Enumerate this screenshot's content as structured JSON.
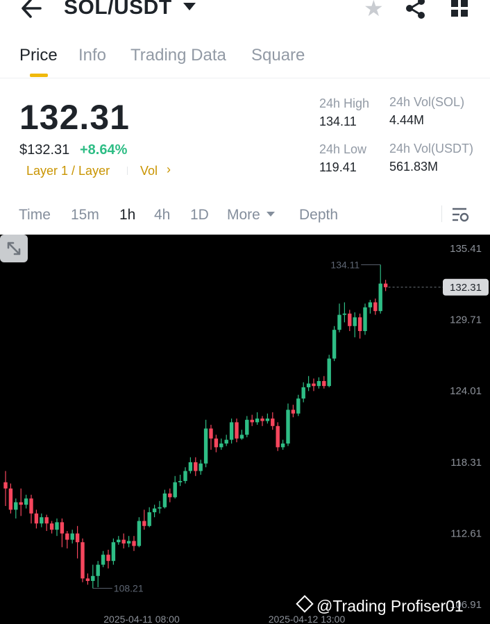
{
  "header": {
    "pair": "SOL/USDT"
  },
  "tabs": [
    {
      "label": "Price",
      "active": true
    },
    {
      "label": "Info"
    },
    {
      "label": "Trading Data"
    },
    {
      "label": "Square"
    }
  ],
  "ticker": {
    "last_price": "132.31",
    "price_usd": "$132.31",
    "change_pct": "+8.64%",
    "tag_category": "Layer 1 / Layer",
    "tag_vol": "Vol",
    "high_label": "24h High",
    "high_value": "134.11",
    "low_label": "24h Low",
    "low_value": "119.41",
    "vol_sol_label": "24h Vol(SOL)",
    "vol_sol_value": "4.44M",
    "vol_usdt_label": "24h Vol(USDT)",
    "vol_usdt_value": "561.83M"
  },
  "timeframes": {
    "items": [
      "Time",
      "15m",
      "1h",
      "4h",
      "1D",
      "More",
      "Depth"
    ],
    "active": "1h"
  },
  "colors": {
    "up": "#2ebd85",
    "down": "#f6465d",
    "accent": "#f0b90b"
  },
  "chart_data": {
    "type": "candlestick",
    "y_ticks": [
      "135.41",
      "129.71",
      "124.01",
      "118.31",
      "112.61",
      "106.91"
    ],
    "ylim": [
      106.91,
      135.41
    ],
    "x_ticks": [
      "2025-04-11 08:00",
      "2025-04-12 13:00"
    ],
    "high_label": "134.11",
    "low_label": "108.21",
    "current_price_label": "132.31",
    "candles": [
      [
        116.7,
        116.2,
        117.6,
        114.8
      ],
      [
        116.2,
        114.5,
        116.6,
        114.2
      ],
      [
        114.5,
        115.1,
        115.4,
        113.8
      ],
      [
        115.1,
        114.9,
        116.2,
        114.0
      ],
      [
        114.9,
        115.4,
        115.7,
        114.6
      ],
      [
        115.4,
        114.2,
        115.7,
        113.4
      ],
      [
        114.2,
        113.4,
        114.5,
        113.0
      ],
      [
        113.4,
        113.9,
        114.2,
        113.1
      ],
      [
        113.9,
        113.4,
        114.1,
        112.8
      ],
      [
        113.4,
        112.9,
        113.6,
        112.6
      ],
      [
        112.9,
        113.5,
        113.8,
        112.4
      ],
      [
        113.5,
        112.6,
        113.8,
        111.5
      ],
      [
        112.6,
        112.1,
        112.8,
        111.4
      ],
      [
        112.1,
        112.6,
        112.9,
        111.8
      ],
      [
        112.6,
        111.9,
        113.2,
        110.6
      ],
      [
        111.9,
        109.0,
        112.2,
        108.7
      ],
      [
        109.0,
        108.8,
        109.4,
        108.5
      ],
      [
        108.8,
        109.2,
        110.1,
        108.21
      ],
      [
        109.2,
        110.1,
        110.4,
        108.3
      ],
      [
        110.1,
        110.9,
        111.2,
        109.9
      ],
      [
        110.9,
        110.4,
        111.3,
        109.8
      ],
      [
        110.4,
        111.9,
        112.2,
        110.1
      ],
      [
        111.9,
        112.1,
        112.4,
        111.7
      ],
      [
        112.1,
        111.8,
        112.6,
        111.4
      ],
      [
        111.8,
        112.0,
        112.4,
        111.5
      ],
      [
        112.0,
        111.6,
        112.4,
        111.2
      ],
      [
        111.6,
        113.6,
        113.9,
        111.5
      ],
      [
        113.6,
        113.2,
        114.5,
        112.9
      ],
      [
        113.2,
        114.3,
        114.7,
        113.1
      ],
      [
        114.3,
        114.6,
        114.9,
        113.9
      ],
      [
        114.6,
        114.7,
        115.2,
        114.2
      ],
      [
        114.7,
        115.8,
        116.1,
        114.6
      ],
      [
        115.8,
        115.5,
        116.2,
        115.1
      ],
      [
        115.5,
        116.7,
        117.2,
        115.4
      ],
      [
        116.7,
        116.8,
        117.3,
        116.4
      ],
      [
        116.8,
        117.6,
        117.9,
        116.6
      ],
      [
        117.6,
        118.3,
        118.7,
        117.4
      ],
      [
        118.3,
        117.6,
        118.7,
        117.2
      ],
      [
        117.6,
        118.2,
        118.5,
        117.3
      ],
      [
        118.2,
        121.0,
        121.7,
        117.9
      ],
      [
        121.0,
        120.2,
        121.3,
        119.3
      ],
      [
        120.2,
        119.5,
        120.5,
        119.1
      ],
      [
        119.5,
        119.8,
        120.2,
        119.3
      ],
      [
        119.8,
        120.1,
        120.5,
        119.6
      ],
      [
        120.1,
        121.5,
        121.8,
        119.8
      ],
      [
        121.5,
        120.2,
        121.8,
        119.9
      ],
      [
        120.2,
        120.5,
        120.9,
        120.1
      ],
      [
        120.5,
        121.7,
        122.0,
        120.3
      ],
      [
        121.7,
        121.5,
        122.1,
        121.2
      ],
      [
        121.5,
        121.8,
        122.3,
        121.3
      ],
      [
        121.8,
        121.6,
        122.0,
        121.2
      ],
      [
        121.6,
        121.8,
        122.2,
        121.4
      ],
      [
        121.8,
        121.2,
        122.3,
        120.9
      ],
      [
        121.2,
        119.5,
        121.5,
        119.2
      ],
      [
        119.5,
        119.8,
        120.1,
        119.3
      ],
      [
        119.8,
        122.5,
        123.0,
        119.6
      ],
      [
        122.5,
        122.2,
        122.9,
        121.9
      ],
      [
        122.2,
        123.4,
        123.7,
        122.0
      ],
      [
        123.4,
        124.3,
        124.7,
        123.1
      ],
      [
        124.3,
        124.6,
        125.2,
        124.0
      ],
      [
        124.6,
        124.4,
        125.0,
        124.0
      ],
      [
        124.4,
        124.8,
        125.1,
        124.2
      ],
      [
        124.8,
        124.4,
        125.2,
        124.2
      ],
      [
        124.4,
        126.6,
        126.9,
        124.3
      ],
      [
        126.6,
        128.9,
        129.2,
        126.4
      ],
      [
        128.9,
        130.1,
        131.0,
        128.7
      ],
      [
        130.1,
        130.2,
        131.1,
        129.5
      ],
      [
        130.2,
        129.2,
        130.5,
        128.8
      ],
      [
        129.2,
        129.9,
        130.3,
        128.3
      ],
      [
        129.9,
        128.8,
        130.2,
        128.2
      ],
      [
        128.8,
        130.7,
        131.0,
        128.5
      ],
      [
        130.7,
        131.1,
        131.3,
        130.2
      ],
      [
        131.1,
        130.4,
        131.4,
        130.1
      ],
      [
        130.4,
        132.6,
        134.11,
        130.2
      ],
      [
        132.6,
        132.31,
        132.9,
        132.0
      ]
    ]
  },
  "watermark": {
    "text": "@Trading Profiser01"
  }
}
